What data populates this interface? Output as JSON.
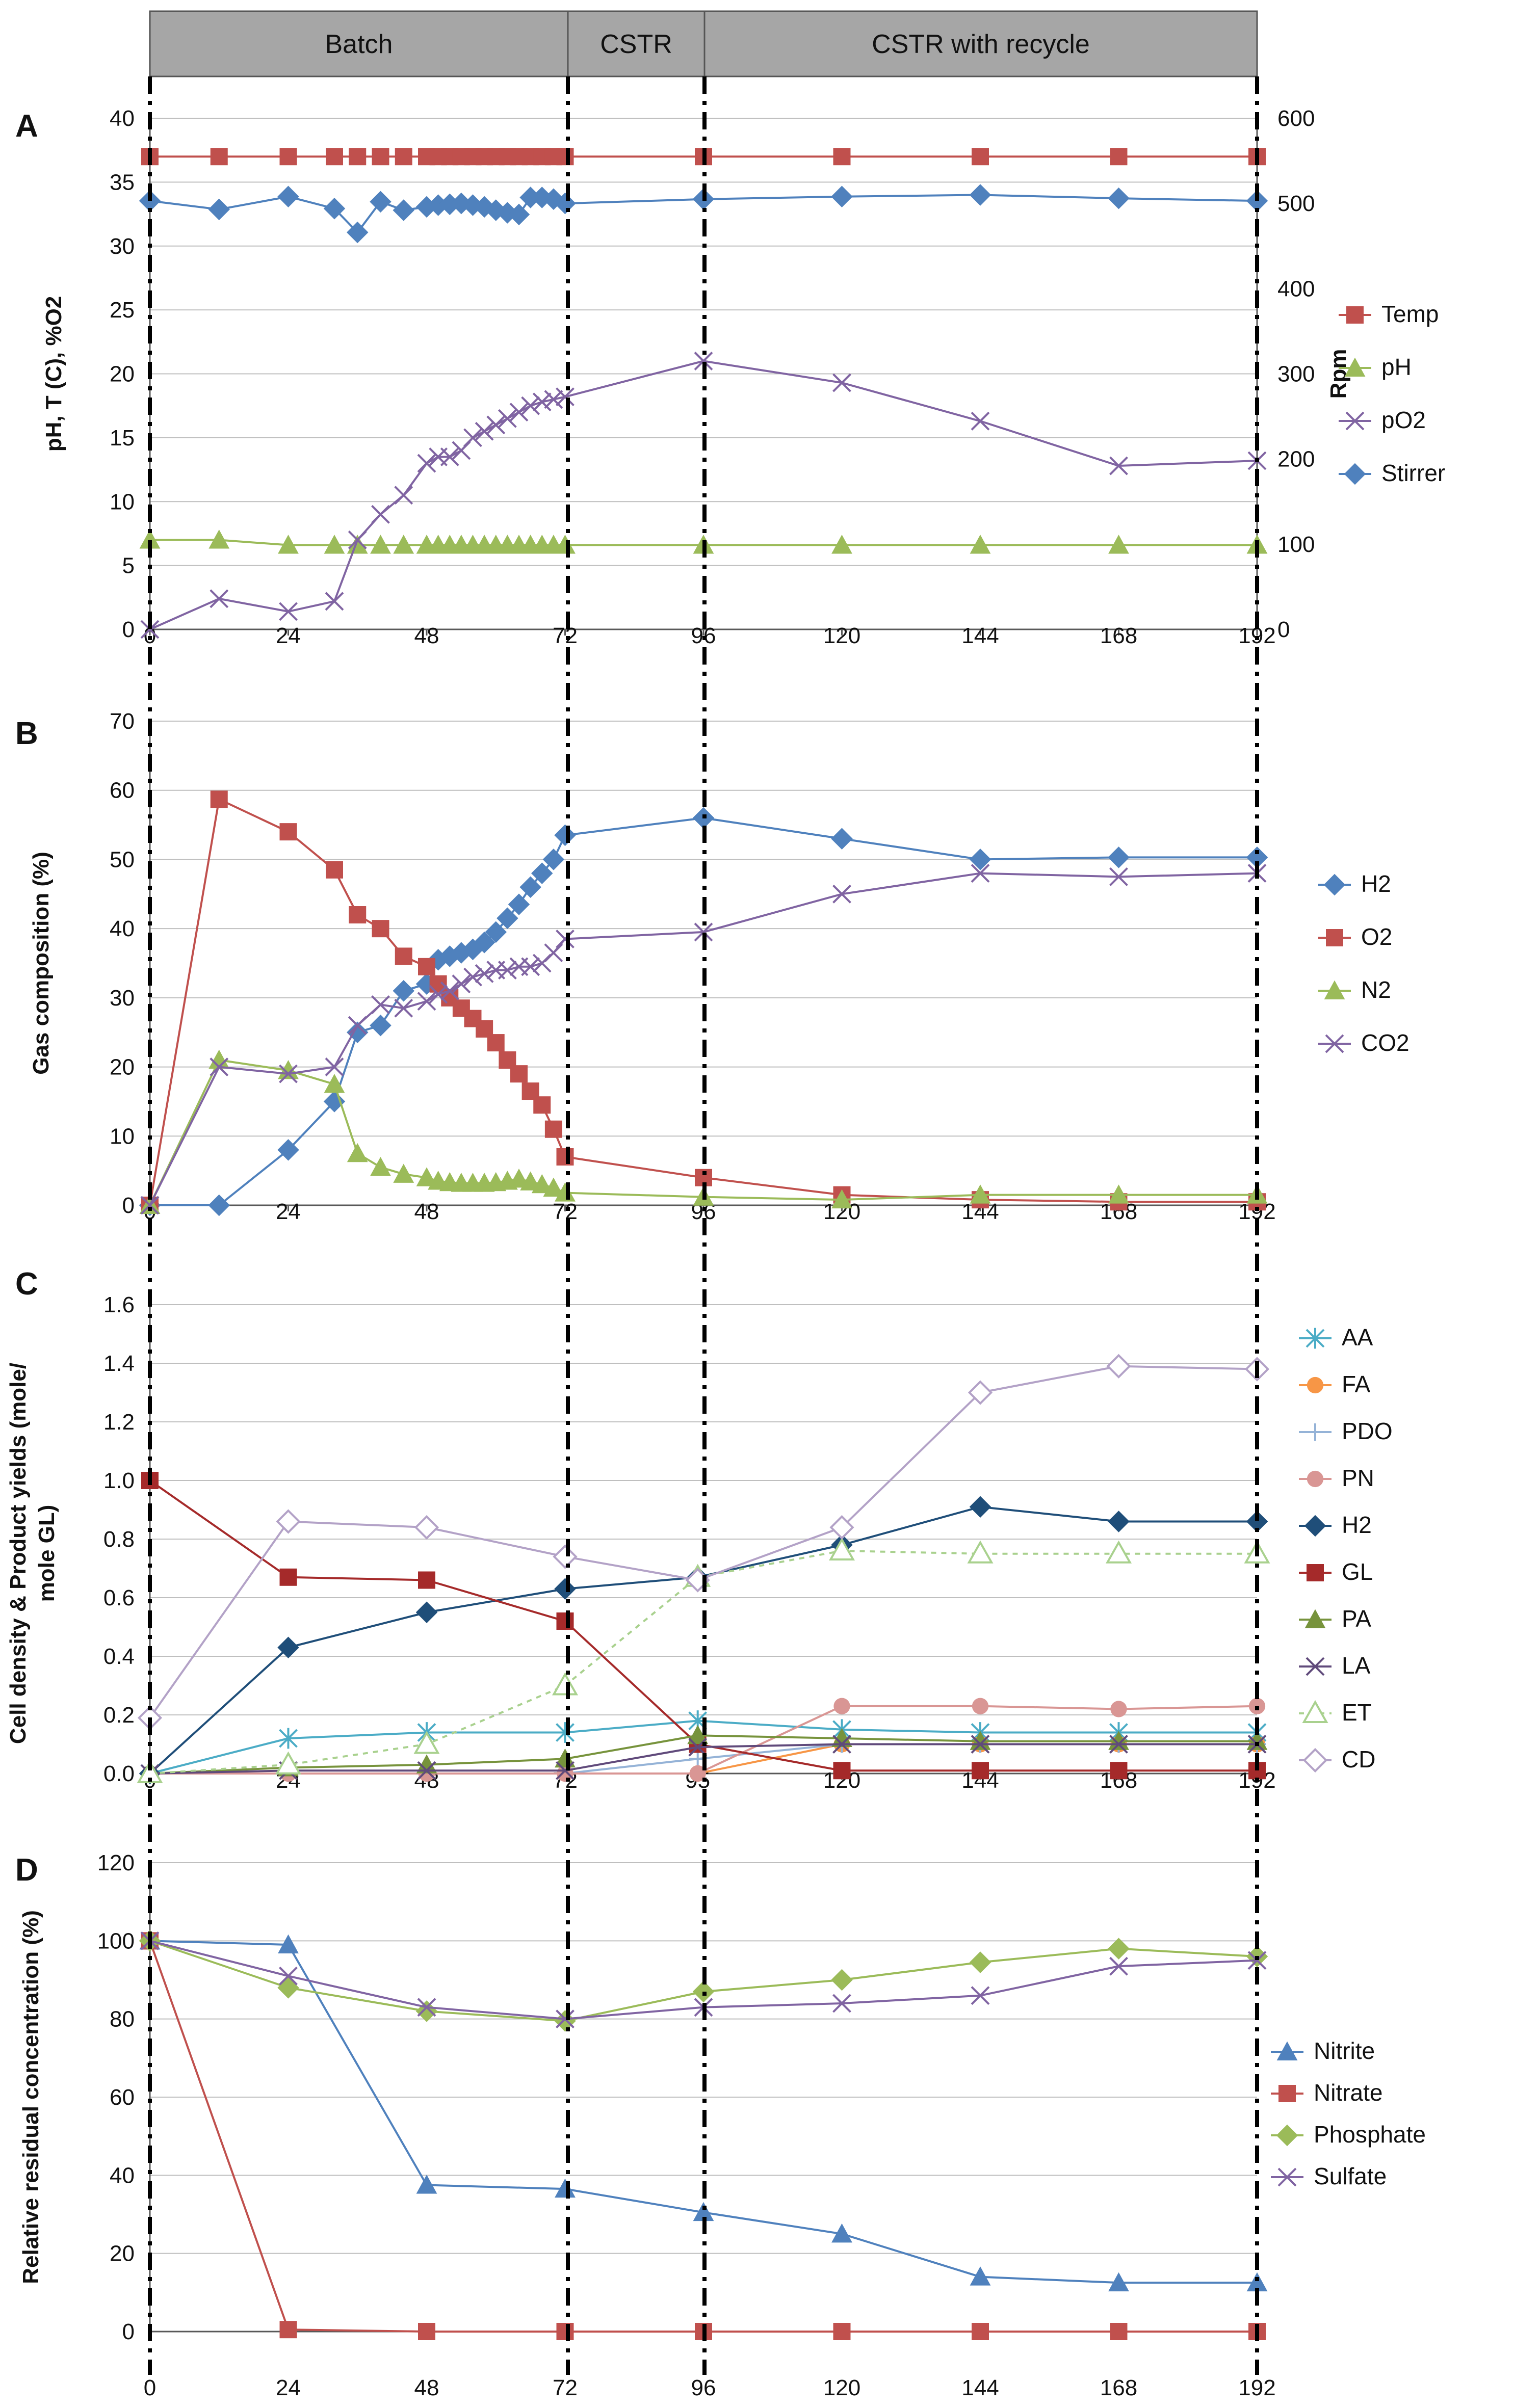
{
  "phases": [
    "Batch",
    "CSTR",
    "CSTR with recycle"
  ],
  "chart_data": [
    {
      "panel": "A",
      "type": "line",
      "ylabel": "pH, T (C), %O2",
      "ylabel2": "Rpm",
      "ylim": [
        0,
        40
      ],
      "yticks": [
        0,
        5,
        10,
        15,
        20,
        25,
        30,
        35,
        40
      ],
      "y2lim": [
        0,
        600
      ],
      "y2ticks": [
        0,
        100,
        200,
        300,
        400,
        500,
        600
      ],
      "xlim": [
        0,
        192
      ],
      "xticks": [
        "0",
        "24",
        "48",
        "72",
        "96",
        "120",
        "144",
        "168",
        "192"
      ],
      "series": [
        {
          "name": "Temp",
          "color": "#c0504d",
          "marker": "square",
          "axis": "left",
          "x": [
            0,
            12,
            24,
            32,
            36,
            40,
            44,
            48,
            50,
            52,
            54,
            56,
            58,
            60,
            62,
            64,
            66,
            68,
            70,
            72,
            96,
            120,
            144,
            168,
            192
          ],
          "y": [
            37,
            37,
            37,
            37,
            37,
            37,
            37,
            37,
            37,
            37,
            37,
            37,
            37,
            37,
            37,
            37,
            37,
            37,
            37,
            37,
            37,
            37,
            37,
            37,
            37
          ]
        },
        {
          "name": "pH",
          "color": "#9bbb59",
          "marker": "triangle",
          "axis": "left",
          "x": [
            0,
            12,
            24,
            32,
            36,
            40,
            44,
            48,
            50,
            52,
            54,
            56,
            58,
            60,
            62,
            64,
            66,
            68,
            70,
            72,
            96,
            120,
            144,
            168,
            192
          ],
          "y": [
            7,
            7,
            6.6,
            6.6,
            6.6,
            6.6,
            6.6,
            6.6,
            6.6,
            6.6,
            6.6,
            6.6,
            6.6,
            6.6,
            6.6,
            6.6,
            6.6,
            6.6,
            6.6,
            6.6,
            6.6,
            6.6,
            6.6,
            6.6,
            6.6
          ]
        },
        {
          "name": "pO2",
          "color": "#8064a2",
          "marker": "x",
          "axis": "left",
          "x": [
            0,
            12,
            24,
            32,
            36,
            40,
            44,
            48,
            50,
            52,
            54,
            56,
            58,
            60,
            62,
            64,
            66,
            68,
            70,
            72,
            96,
            120,
            144,
            168,
            192
          ],
          "y": [
            0,
            2.4,
            1.4,
            2.2,
            7,
            9,
            10.5,
            13,
            13.5,
            13.5,
            14,
            15,
            15.5,
            16,
            16.5,
            17,
            17.5,
            17.8,
            18,
            18.2,
            21,
            19.3,
            16.3,
            12.8,
            13.2
          ]
        },
        {
          "name": "Stirrer",
          "color": "#4f81bd",
          "marker": "diamond",
          "axis": "right",
          "x": [
            0,
            12,
            24,
            32,
            36,
            40,
            44,
            48,
            50,
            52,
            54,
            56,
            58,
            60,
            62,
            64,
            66,
            68,
            70,
            72,
            96,
            120,
            144,
            168,
            192
          ],
          "y": [
            503,
            493,
            508,
            494,
            466,
            502,
            492,
            496,
            498,
            499,
            500,
            498,
            496,
            492,
            489,
            487,
            507,
            507,
            505,
            500,
            505,
            508,
            510,
            506,
            503
          ]
        }
      ]
    },
    {
      "panel": "B",
      "type": "line",
      "ylabel": "Gas composition (%)",
      "ylim": [
        0,
        70
      ],
      "yticks": [
        0,
        10,
        20,
        30,
        40,
        50,
        60,
        70
      ],
      "xlim": [
        0,
        192
      ],
      "xticks": [
        "0",
        "24",
        "48",
        "72",
        "96",
        "120",
        "144",
        "168",
        "192"
      ],
      "series": [
        {
          "name": "H2",
          "color": "#4f81bd",
          "marker": "diamond",
          "x": [
            0,
            12,
            24,
            32,
            36,
            40,
            44,
            48,
            50,
            52,
            54,
            56,
            58,
            60,
            62,
            64,
            66,
            68,
            70,
            72,
            96,
            120,
            144,
            168,
            192
          ],
          "y": [
            0,
            0,
            8,
            15,
            25,
            26,
            31,
            32,
            35.5,
            36,
            36.5,
            37,
            38,
            39.5,
            41.5,
            43.5,
            46,
            48,
            50,
            53.5,
            56,
            53,
            50,
            50.3,
            50.3
          ]
        },
        {
          "name": "O2",
          "color": "#c0504d",
          "marker": "square",
          "x": [
            0,
            12,
            24,
            32,
            36,
            40,
            44,
            48,
            50,
            52,
            54,
            56,
            58,
            60,
            62,
            64,
            66,
            68,
            70,
            72,
            96,
            120,
            144,
            168,
            192
          ],
          "y": [
            0,
            58.7,
            54,
            48.5,
            42,
            40,
            36,
            34.5,
            32,
            30,
            28.5,
            27,
            25.5,
            23.5,
            21,
            19,
            16.5,
            14.5,
            11,
            7,
            4,
            1.5,
            0.8,
            0.5,
            0.5
          ]
        },
        {
          "name": "N2",
          "color": "#9bbb59",
          "marker": "triangle",
          "x": [
            0,
            12,
            24,
            32,
            36,
            40,
            44,
            48,
            50,
            52,
            54,
            56,
            58,
            60,
            62,
            64,
            66,
            68,
            70,
            72,
            96,
            120,
            144,
            168,
            192
          ],
          "y": [
            0,
            21,
            19.5,
            17.5,
            7.5,
            5.5,
            4.5,
            4,
            3.5,
            3.3,
            3.2,
            3.2,
            3.2,
            3.3,
            3.5,
            3.8,
            3.4,
            3,
            2.5,
            1.8,
            1.2,
            0.8,
            1.5,
            1.5,
            1.5
          ]
        },
        {
          "name": "CO2",
          "color": "#8064a2",
          "marker": "x",
          "x": [
            0,
            12,
            24,
            32,
            36,
            40,
            44,
            48,
            50,
            52,
            54,
            56,
            58,
            60,
            62,
            64,
            66,
            68,
            70,
            72,
            96,
            120,
            144,
            168,
            192
          ],
          "y": [
            0,
            20,
            19,
            20,
            26,
            29,
            28.5,
            29.5,
            30.5,
            31,
            32,
            33,
            33.5,
            34,
            34,
            34.5,
            34.5,
            35,
            36.5,
            38.5,
            39.5,
            45,
            48,
            47.5,
            48
          ]
        }
      ]
    },
    {
      "panel": "C",
      "type": "line",
      "ylabel": "Cell density & Product yields (mole/ mole GL)",
      "ylabel_lines": [
        "Cell density & Product yields (mole/",
        "mole GL)"
      ],
      "ylim": [
        0,
        1.6
      ],
      "yticks": [
        "0.0",
        "0.2",
        "0.4",
        "0.6",
        "0.8",
        "1.0",
        "1.2",
        "1.4",
        "1.6"
      ],
      "xlim": [
        0,
        192
      ],
      "xtick_values": [
        0,
        24,
        48,
        72,
        95,
        120,
        144,
        168,
        192
      ],
      "xticks": [
        "0",
        "24",
        "48",
        "72",
        "95",
        "120",
        "144",
        "168",
        "192"
      ],
      "series": [
        {
          "name": "AA",
          "color": "#4bacc6",
          "marker": "asterisk",
          "x": [
            0,
            24,
            48,
            72,
            95,
            120,
            144,
            168,
            192
          ],
          "y": [
            0,
            0.12,
            0.14,
            0.14,
            0.18,
            0.15,
            0.14,
            0.14,
            0.14
          ]
        },
        {
          "name": "FA",
          "color": "#f79646",
          "marker": "circle",
          "x": [
            0,
            24,
            48,
            72,
            95,
            120,
            144,
            168,
            192
          ],
          "y": [
            0,
            0,
            0,
            0,
            0,
            0.1,
            0.1,
            0.1,
            0.1
          ]
        },
        {
          "name": "PDO",
          "color": "#95b3d7",
          "marker": "plus",
          "x": [
            0,
            24,
            48,
            72,
            95,
            120,
            144,
            168,
            192
          ],
          "y": [
            0,
            0,
            0,
            0,
            0.05,
            0.1,
            0.1,
            0.1,
            0.1
          ]
        },
        {
          "name": "PN",
          "color": "#d99694",
          "marker": "circle",
          "x": [
            0,
            24,
            48,
            72,
            95,
            120,
            144,
            168,
            192
          ],
          "y": [
            0,
            0,
            0,
            0,
            0,
            0.23,
            0.23,
            0.22,
            0.23
          ]
        },
        {
          "name": "H2",
          "color": "#1f4e79",
          "marker": "diamond",
          "x": [
            0,
            24,
            48,
            72,
            95,
            120,
            144,
            168,
            192
          ],
          "y": [
            0,
            0.43,
            0.55,
            0.63,
            0.67,
            0.78,
            0.91,
            0.86,
            0.86
          ]
        },
        {
          "name": "GL",
          "color": "#a52a2a",
          "marker": "square",
          "x": [
            0,
            24,
            48,
            72,
            95,
            120,
            144,
            168,
            192
          ],
          "y": [
            1,
            0.67,
            0.66,
            0.52,
            0.1,
            0.01,
            0.01,
            0.01,
            0.01
          ]
        },
        {
          "name": "PA",
          "color": "#77933c",
          "marker": "triangle",
          "x": [
            0,
            24,
            48,
            72,
            95,
            120,
            144,
            168,
            192
          ],
          "y": [
            0,
            0.02,
            0.03,
            0.05,
            0.13,
            0.12,
            0.11,
            0.11,
            0.11
          ]
        },
        {
          "name": "LA",
          "color": "#604a7b",
          "marker": "x",
          "x": [
            0,
            24,
            48,
            72,
            95,
            120,
            144,
            168,
            192
          ],
          "y": [
            0,
            0.01,
            0.01,
            0.01,
            0.09,
            0.1,
            0.1,
            0.1,
            0.1
          ]
        },
        {
          "name": "ET",
          "color": "#a9d18e",
          "marker": "triangle-open",
          "dashed": true,
          "x": [
            0,
            24,
            48,
            72,
            95,
            120,
            144,
            168,
            192
          ],
          "y": [
            0,
            0.03,
            0.1,
            0.3,
            0.67,
            0.76,
            0.75,
            0.75,
            0.75
          ]
        },
        {
          "name": "CD",
          "color": "#b3a2c7",
          "marker": "diamond-open",
          "x": [
            0,
            24,
            48,
            72,
            95,
            120,
            144,
            168,
            192
          ],
          "y": [
            0.19,
            0.86,
            0.84,
            0.74,
            0.66,
            0.84,
            1.3,
            1.39,
            1.38
          ]
        }
      ]
    },
    {
      "panel": "D",
      "type": "line",
      "ylabel": "Relative residual concentration (%)",
      "ylim": [
        0,
        120
      ],
      "yticks": [
        0,
        20,
        40,
        60,
        80,
        100,
        120
      ],
      "xlim": [
        0,
        192
      ],
      "xticks": [
        "0",
        "24",
        "48",
        "72",
        "96",
        "120",
        "144",
        "168",
        "192"
      ],
      "series": [
        {
          "name": "Nitrite",
          "color": "#4f81bd",
          "marker": "triangle",
          "x": [
            0,
            24,
            48,
            72,
            96,
            120,
            144,
            168,
            192
          ],
          "y": [
            100,
            99,
            37.5,
            36.5,
            30.5,
            25,
            14,
            12.5,
            12.5
          ]
        },
        {
          "name": "Nitrate",
          "color": "#c0504d",
          "marker": "square",
          "x": [
            0,
            24,
            48,
            72,
            96,
            120,
            144,
            168,
            192
          ],
          "y": [
            100,
            0.5,
            0,
            0,
            0,
            0,
            0,
            0,
            0
          ]
        },
        {
          "name": "Phosphate",
          "color": "#9bbb59",
          "marker": "diamond",
          "x": [
            0,
            24,
            48,
            72,
            96,
            120,
            144,
            168,
            192
          ],
          "y": [
            100,
            88,
            82,
            79.5,
            87,
            90,
            94.5,
            98,
            96
          ]
        },
        {
          "name": "Sulfate",
          "color": "#8064a2",
          "marker": "x",
          "x": [
            0,
            24,
            48,
            72,
            96,
            120,
            144,
            168,
            192
          ],
          "y": [
            100,
            91,
            83,
            80,
            83,
            84,
            86,
            93.5,
            95
          ]
        }
      ]
    }
  ]
}
